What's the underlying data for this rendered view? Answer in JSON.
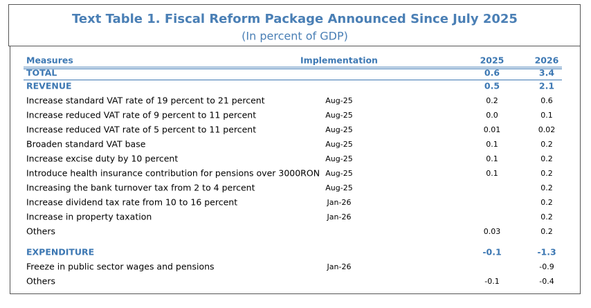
{
  "header": {
    "title": "Text Table 1. Fiscal Reform Package Announced Since July 2025",
    "subtitle": "(In percent of GDP)"
  },
  "table": {
    "columns": {
      "measure": "Measures",
      "implementation": "Implementation",
      "y2025": "2025",
      "y2026": "2026"
    },
    "total": {
      "measure": "TOTAL",
      "y2025": "0.6",
      "y2026": "3.4"
    },
    "revenue": {
      "measure": "REVENUE",
      "y2025": "0.5",
      "y2026": "2.1",
      "items": [
        {
          "measure": "Increase standard VAT rate of 19 percent to 21 percent",
          "implementation": "Aug-25",
          "y2025": "0.2",
          "y2026": "0.6"
        },
        {
          "measure": "Increase reduced VAT rate of 9 percent to 11 percent",
          "implementation": "Aug-25",
          "y2025": "0.0",
          "y2026": "0.1"
        },
        {
          "measure": "Increase reduced VAT rate of 5 percent to 11 percent",
          "implementation": "Aug-25",
          "y2025": "0.01",
          "y2026": "0.02"
        },
        {
          "measure": "Broaden standard VAT base",
          "implementation": "Aug-25",
          "y2025": "0.1",
          "y2026": "0.2"
        },
        {
          "measure": "Increase excise duty by 10 percent",
          "implementation": "Aug-25",
          "y2025": "0.1",
          "y2026": "0.2"
        },
        {
          "measure": "Introduce health insurance contribution for pensions over 3000RON",
          "implementation": "Aug-25",
          "y2025": "0.1",
          "y2026": "0.2"
        },
        {
          "measure": "Increasing the bank turnover tax from 2 to 4 percent",
          "implementation": "Aug-25",
          "y2026": "0.2"
        },
        {
          "measure": "Increase dividend tax rate from 10 to 16 percent",
          "implementation": "Jan-26",
          "y2026": "0.2"
        },
        {
          "measure": "Increase in property taxation",
          "implementation": "Jan-26",
          "y2026": "0.2"
        },
        {
          "measure": "Others",
          "y2025": "0.03",
          "y2026": "0.2"
        }
      ]
    },
    "expenditure": {
      "measure": "EXPENDITURE",
      "y2025": "-0.1",
      "y2026": "-1.3",
      "items": [
        {
          "measure": "Freeze in public sector wages and pensions",
          "implementation": "Jan-26",
          "y2026": "-0.9"
        },
        {
          "measure": "Others",
          "y2025": "-0.1",
          "y2026": "-0.4"
        }
      ]
    }
  }
}
